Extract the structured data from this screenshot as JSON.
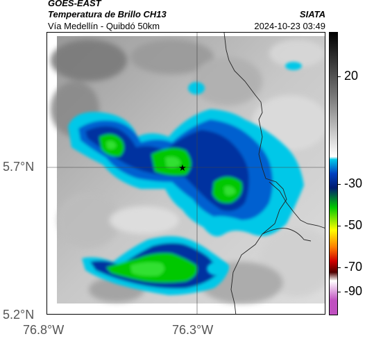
{
  "header": {
    "satellite": "GOES-EAST",
    "product": "Temperatura de Brillo CH13",
    "region": "Vía Medellín - Quibdó 50km",
    "agency": "SIATA",
    "timestamp": "2024-10-23 03:49"
  },
  "map": {
    "y_ticks": [
      "5.7°N",
      "5.2°N"
    ],
    "x_ticks": [
      "76.8°W",
      "76.3°W"
    ],
    "marker": "star"
  },
  "colorbar": {
    "labels": [
      "20",
      "-30",
      "-50",
      "-70",
      "-90"
    ],
    "colors": {
      "warm_top": "#000000",
      "warm_mid": "#808080",
      "warm_low": "#ffffff",
      "cyan": "#00c8e8",
      "blue": "#0040c0",
      "navy": "#001a70",
      "green": "#00c800",
      "yellow": "#ffff00",
      "orange": "#ff8000",
      "red": "#d00000",
      "dark_red": "#500000",
      "magenta": "#c050c0"
    }
  }
}
